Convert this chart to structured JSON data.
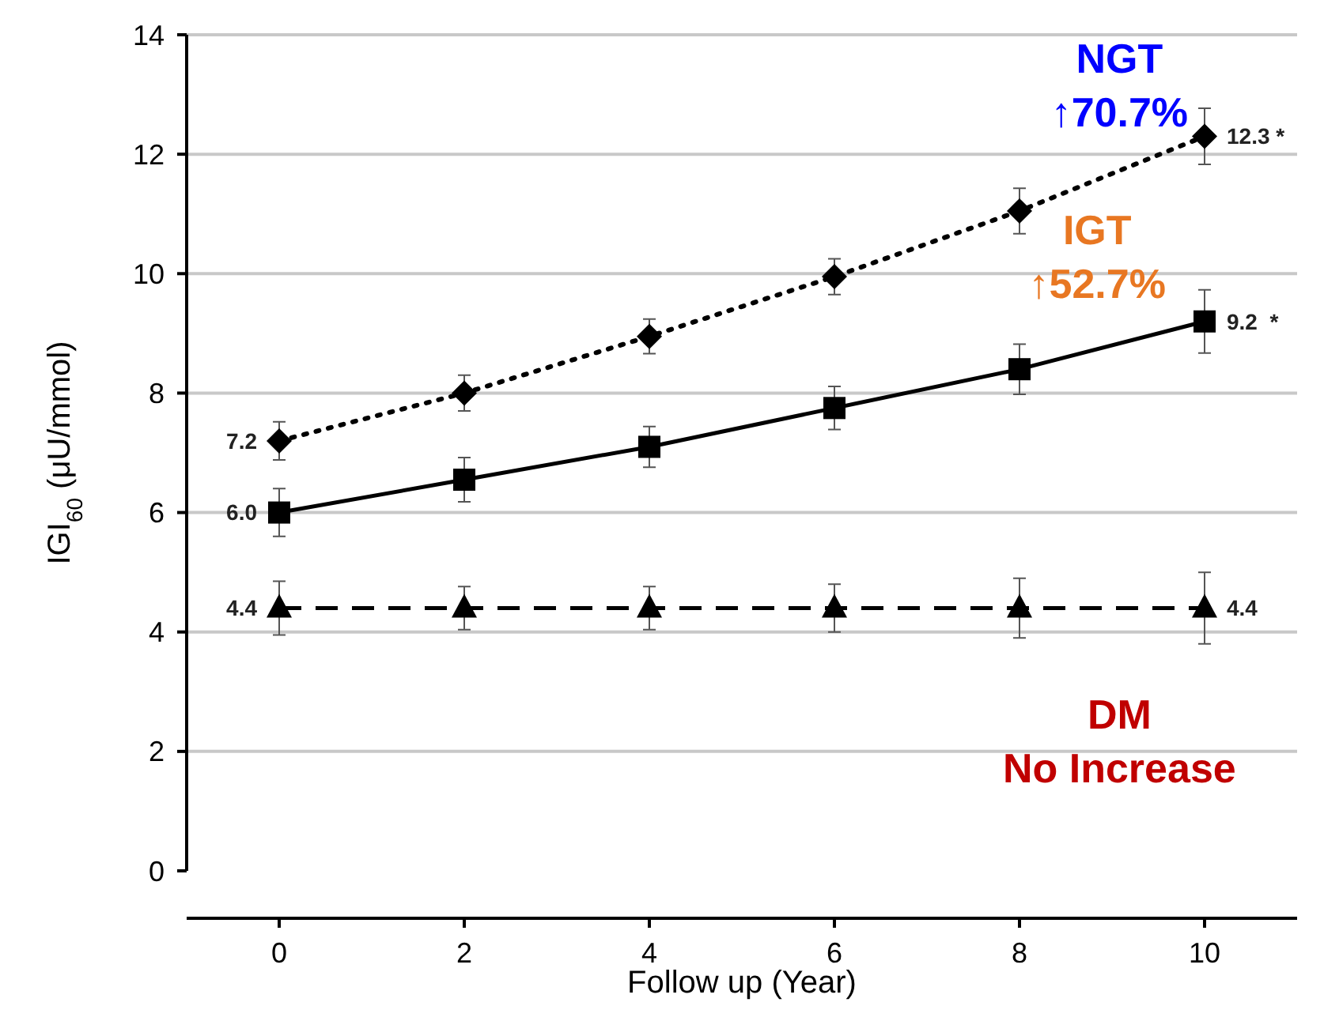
{
  "chart_data": {
    "type": "line",
    "xlabel": "Follow up (Year)",
    "ylabel": "IGI$_{60}$ (μU/mmol)",
    "x": [
      0,
      2,
      4,
      6,
      8,
      10
    ],
    "series": [
      {
        "color": "#000000",
        "marker": "diamond",
        "line_style": "dotted",
        "values": [
          7.2,
          8.0,
          8.95,
          9.95,
          11.05,
          12.3
        ],
        "errors": [
          0.32,
          0.3,
          0.29,
          0.3,
          0.38,
          0.47
        ],
        "value_labels": [
          "7.2",
          null,
          null,
          null,
          null,
          "12.3 *"
        ]
      },
      {
        "color": "#000000",
        "marker": "square",
        "line_style": "solid",
        "values": [
          6.0,
          6.55,
          7.1,
          7.75,
          8.4,
          9.2
        ],
        "errors": [
          0.4,
          0.37,
          0.34,
          0.36,
          0.42,
          0.53
        ],
        "value_labels": [
          "6.0",
          null,
          null,
          null,
          null,
          "9.2  *"
        ]
      },
      {
        "color": "#000000",
        "marker": "triangle",
        "line_style": "dashed",
        "values": [
          4.4,
          4.4,
          4.4,
          4.4,
          4.4,
          4.4
        ],
        "errors": [
          0.45,
          0.36,
          0.36,
          0.4,
          0.5,
          0.6
        ],
        "value_labels": [
          "4.4",
          null,
          null,
          null,
          null,
          "4.4"
        ]
      }
    ],
    "annotations": [
      "NGT\n↑70.7%",
      "IGT\n↑52.7%",
      "DM\nNo Increase"
    ],
    "xlim": [
      -1,
      11
    ],
    "xticks": [
      0,
      2,
      4,
      6,
      8,
      10
    ],
    "ylim": [
      0,
      14
    ],
    "yticks": [
      0,
      2,
      4,
      6,
      8,
      10,
      12,
      14
    ],
    "grid": "y"
  }
}
